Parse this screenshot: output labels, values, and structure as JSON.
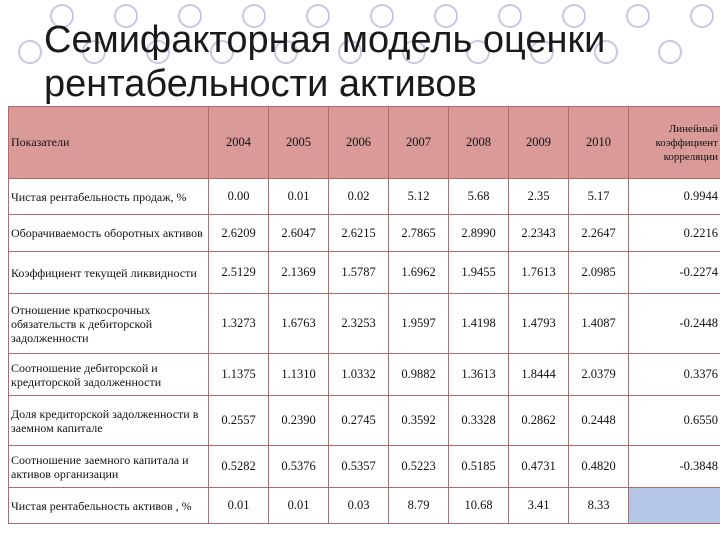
{
  "slide": {
    "title": "Семифакторная модель оценки\nрентабельности активов"
  },
  "table": {
    "header": {
      "indicator": "Показатели",
      "years": [
        "2004",
        "2005",
        "2006",
        "2007",
        "2008",
        "2009",
        "2010"
      ],
      "correlation": "Линейный коэффициент корреляции"
    },
    "rows": [
      {
        "label": "Чистая рентабельность продаж, %",
        "values": [
          "0.00",
          "0.01",
          "0.02",
          "5.12",
          "5.68",
          "2.35",
          "5.17"
        ],
        "corr": "0.9944"
      },
      {
        "label": "Оборачиваемость оборотных активов",
        "values": [
          "2.6209",
          "2.6047",
          "2.6215",
          "2.7865",
          "2.8990",
          "2.2343",
          "2.2647"
        ],
        "corr": "0.2216"
      },
      {
        "label": "Коэффициент текущей ликвидности",
        "values": [
          "2.5129",
          "2.1369",
          "1.5787",
          "1.6962",
          "1.9455",
          "1.7613",
          "2.0985"
        ],
        "corr": "-0.2274"
      },
      {
        "label": "Отношение краткосрочных обязательств к дебиторской задолженности",
        "values": [
          "1.3273",
          "1.6763",
          "2.3253",
          "1.9597",
          "1.4198",
          "1.4793",
          "1.4087"
        ],
        "corr": "-0.2448"
      },
      {
        "label": "Соотношение дебиторской и кредиторской задолженности",
        "values": [
          "1.1375",
          "1.1310",
          "1.0332",
          "0.9882",
          "1.3613",
          "1.8444",
          "2.0379"
        ],
        "corr": "0.3376"
      },
      {
        "label": "Доля кредиторской задолженности в заемном капитале",
        "values": [
          "0.2557",
          "0.2390",
          "0.2745",
          "0.3592",
          "0.3328",
          "0.2862",
          "0.2448"
        ],
        "corr": "0.6550"
      },
      {
        "label": "Соотношение заемного капитала и активов организации",
        "values": [
          "0.5282",
          "0.5376",
          "0.5357",
          "0.5223",
          "0.5185",
          "0.4731",
          "0.4820"
        ],
        "corr": "-0.3848"
      },
      {
        "label": "Чистая рентабельность активов , %",
        "values": [
          "0.01",
          "0.01",
          "0.03",
          "8.79",
          "10.68",
          "3.41",
          "8.33"
        ],
        "corr": ""
      }
    ]
  },
  "colors": {
    "header_bg": "#d99a98",
    "border": "#b46a6a",
    "highlight_cell": "#b3c6e8"
  }
}
